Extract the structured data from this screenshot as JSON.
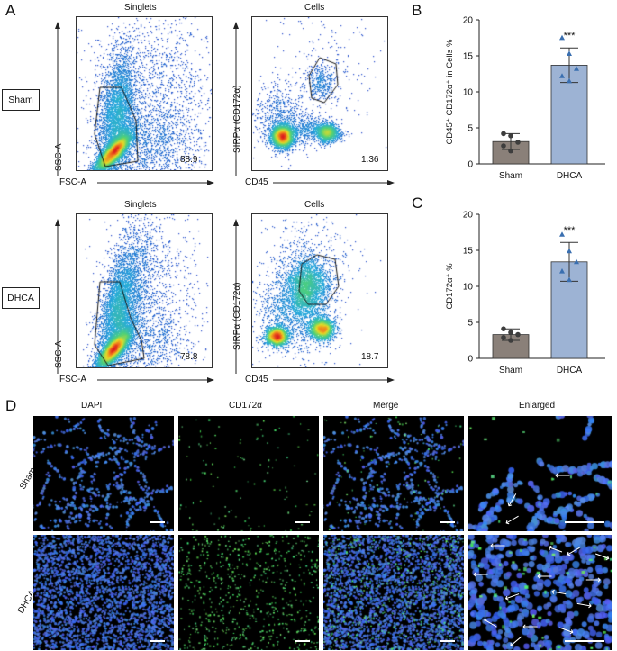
{
  "panel_letters": {
    "a": "A",
    "b": "B",
    "c": "C",
    "d": "D"
  },
  "flow": {
    "gate_titles": {
      "singlets": "Singlets",
      "cells": "Cells"
    },
    "rows": [
      {
        "label": "Sham",
        "singlets_pct": "88.9",
        "cells_pct": "1.36"
      },
      {
        "label": "DHCA",
        "singlets_pct": "78.8",
        "cells_pct": "18.7"
      }
    ],
    "axes": {
      "fsc": "FSC-A",
      "ssc": "SSC-A",
      "cd45": "CD45",
      "sirpa": "SIRPα (CD172α)"
    }
  },
  "chart_data": [
    {
      "type": "bar",
      "panel": "B",
      "categories": [
        "Sham",
        "DHCA"
      ],
      "values": [
        3.1,
        13.7
      ],
      "error": [
        1.1,
        2.4
      ],
      "points": [
        [
          4.2,
          3.9,
          3.0,
          2.5,
          1.8
        ],
        [
          17.5,
          15.3,
          13.2,
          12.2,
          11.5
        ]
      ],
      "ylabel": "CD45⁺ CD172α⁺ in Cells %",
      "ylim": [
        0,
        20
      ],
      "yticks": [
        0,
        5,
        10,
        15,
        20
      ],
      "significance": "***",
      "colors": {
        "Sham": "#8a8079",
        "DHCA": "#9db3d4"
      }
    },
    {
      "type": "bar",
      "panel": "C",
      "categories": [
        "Sham",
        "DHCA"
      ],
      "values": [
        3.3,
        13.4
      ],
      "error": [
        0.8,
        2.7
      ],
      "points": [
        [
          4.1,
          3.6,
          3.3,
          2.9,
          2.5
        ],
        [
          17.2,
          14.9,
          13.4,
          12.1,
          10.9
        ]
      ],
      "ylabel": "CD172α⁺ %",
      "ylim": [
        0,
        20
      ],
      "yticks": [
        0,
        5,
        10,
        15,
        20
      ],
      "significance": "***",
      "colors": {
        "Sham": "#8a8079",
        "DHCA": "#9db3d4"
      }
    }
  ],
  "microscopy": {
    "columns": [
      "DAPI",
      "CD172α",
      "Merge",
      "Enlarged"
    ],
    "rows": [
      "Sham",
      "DHCA"
    ]
  }
}
